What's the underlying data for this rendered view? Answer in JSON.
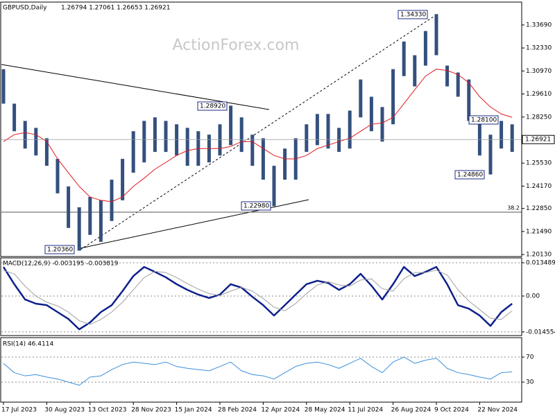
{
  "chart_data": [
    {
      "type": "price-bars",
      "title": "GBPUSD,Daily",
      "subtitle": "1.26794 1.27061 1.26653 1.26921",
      "watermark": "ActionForex.com",
      "categories": [
        "17 Jul 2023",
        null,
        null,
        null,
        "30 Aug 2023",
        null,
        null,
        null,
        "13 Oct 2023",
        null,
        null,
        null,
        "28 Nov 2023",
        null,
        null,
        null,
        "15 Jan 2024",
        null,
        null,
        null,
        "28 Feb 2024",
        null,
        null,
        null,
        "12 Apr 2024",
        null,
        null,
        null,
        "28 May 2024",
        null,
        null,
        null,
        "11 Jul 2024",
        null,
        null,
        null,
        "26 Aug 2024",
        null,
        null,
        null,
        "9 Oct 2024",
        null,
        null,
        null,
        "22 Nov 2024",
        null,
        null,
        null
      ],
      "high": [
        1.3108,
        1.2904,
        1.2802,
        1.2761,
        1.27,
        1.2578,
        1.2415,
        1.2292,
        1.2353,
        1.2333,
        1.2455,
        1.2578,
        1.2741,
        1.2802,
        1.2823,
        1.2802,
        1.2782,
        1.2761,
        1.2741,
        1.2721,
        1.2782,
        1.2892,
        1.2823,
        1.2721,
        1.27,
        1.2537,
        1.2639,
        1.27,
        1.2782,
        1.2843,
        1.2843,
        1.2761,
        1.2863,
        1.3047,
        1.2945,
        1.2884,
        1.3108,
        1.3271,
        1.319,
        1.3333,
        1.3433,
        1.3129,
        1.3088,
        1.3047,
        1.2823,
        1.2721,
        1.2802,
        1.2782
      ],
      "low": [
        1.2904,
        1.2741,
        1.2639,
        1.2598,
        1.2537,
        1.2374,
        1.217,
        1.2036,
        1.2129,
        1.2088,
        1.2211,
        1.2333,
        1.2496,
        1.2557,
        1.2619,
        1.2619,
        1.2598,
        1.2537,
        1.2537,
        1.2557,
        1.2598,
        1.2659,
        1.2619,
        1.2537,
        1.2455,
        1.2298,
        1.2455,
        1.2455,
        1.2619,
        1.2659,
        1.2639,
        1.2619,
        1.2639,
        1.2823,
        1.2741,
        1.268,
        1.2782,
        1.3067,
        1.3006,
        1.3129,
        1.319,
        1.3006,
        1.2945,
        1.2802,
        1.2598,
        1.2486,
        1.2639,
        1.2619
      ],
      "bar_color": "#34507e",
      "ma": {
        "color": "#e0191e",
        "values": [
          1.268,
          1.2721,
          1.2733,
          1.2721,
          1.268,
          1.2578,
          1.2496,
          1.2415,
          1.2353,
          1.2333,
          1.2325,
          1.2353,
          1.2415,
          1.2464,
          1.2517,
          1.2557,
          1.2598,
          1.2627,
          1.2639,
          1.2639,
          1.2639,
          1.2651,
          1.268,
          1.268,
          1.2639,
          1.2598,
          1.2578,
          1.2578,
          1.2598,
          1.2639,
          1.2659,
          1.268,
          1.27,
          1.2741,
          1.2782,
          1.279,
          1.2823,
          1.2904,
          1.2986,
          1.3067,
          1.3108,
          1.31,
          1.3076,
          1.3027,
          1.2945,
          1.2884,
          1.2843,
          1.2823
        ]
      },
      "last_price": 1.26921,
      "level_label": "38.2",
      "annotations": [
        "1.34330",
        "1.28920",
        "1.22980",
        "1.20360",
        "1.28100",
        "1.24860"
      ],
      "ylim": [
        1.2001,
        1.3504
      ],
      "yticks": [
        {
          "value": 1.3369,
          "label": "1.33690"
        },
        {
          "value": 1.3233,
          "label": "1.32330"
        },
        {
          "value": 1.3097,
          "label": "1.30970"
        },
        {
          "value": 1.2961,
          "label": "1.29610"
        },
        {
          "value": 1.2825,
          "label": "1.28250"
        },
        {
          "value": 1.2553,
          "label": "1.25530"
        },
        {
          "value": 1.2417,
          "label": "1.24170"
        },
        {
          "value": 1.2285,
          "label": "1.22850"
        },
        {
          "value": 1.2149,
          "label": "1.21490"
        },
        {
          "value": 1.2013,
          "label": "1.20130"
        }
      ]
    },
    {
      "type": "line",
      "title": "MACD(12,26,9) -0.003195 -0.003819",
      "series": [
        {
          "color": "#0d1f8c",
          "width": 2.5,
          "values": [
            0.0118,
            0.0048,
            -0.0014,
            -0.0031,
            -0.0037,
            -0.0065,
            -0.0093,
            -0.0135,
            -0.0107,
            -0.0065,
            -0.0037,
            0.002,
            0.0081,
            0.0118,
            0.0098,
            0.0076,
            0.0048,
            0.0025,
            0.0006,
            -0.0008,
            0.0006,
            0.0048,
            0.0034,
            -0.0003,
            -0.0037,
            -0.0079,
            -0.0037,
            0.0006,
            0.0048,
            0.0062,
            0.0053,
            0.0025,
            0.0048,
            0.009,
            0.0042,
            -0.0014,
            0.0048,
            0.0118,
            0.0081,
            0.0098,
            0.0118,
            0.0048,
            -0.0037,
            -0.0051,
            -0.0079,
            -0.0121,
            -0.0065,
            -0.0031
          ]
        },
        {
          "color": "#a0a0a0",
          "width": 1,
          "values": [
            0.0104,
            0.009,
            0.004,
            0.0,
            -0.0025,
            -0.004,
            -0.0065,
            -0.01,
            -0.0115,
            -0.0095,
            -0.0065,
            -0.0025,
            0.0025,
            0.0075,
            0.01,
            0.0095,
            0.0075,
            0.005,
            0.0028,
            0.001,
            0.0002,
            0.002,
            0.0035,
            0.002,
            -0.001,
            -0.0045,
            -0.006,
            -0.003,
            0.001,
            0.0045,
            0.0058,
            0.0045,
            0.004,
            0.0065,
            0.007,
            0.003,
            0.002,
            0.007,
            0.0095,
            0.0095,
            0.0105,
            0.0085,
            0.0025,
            -0.002,
            -0.0055,
            -0.009,
            -0.0095,
            -0.006
          ]
        }
      ],
      "ylim": [
        -0.01602,
        0.01545
      ],
      "yticks": [
        0.013489,
        {
          "value": 0,
          "label": "0.00"
        },
        -0.014554
      ]
    },
    {
      "type": "line",
      "title": "RSI(14) 46.4114",
      "series": [
        {
          "color": "#3a8fdb",
          "width": 1,
          "values": [
            60,
            45,
            40,
            42,
            38,
            35,
            30,
            25,
            38,
            40,
            50,
            58,
            62,
            60,
            58,
            62,
            55,
            52,
            50,
            48,
            55,
            62,
            48,
            42,
            40,
            35,
            45,
            55,
            60,
            62,
            58,
            52,
            60,
            68,
            55,
            45,
            62,
            70,
            60,
            65,
            68,
            52,
            45,
            42,
            38,
            35,
            45,
            46.4
          ]
        }
      ],
      "ylim": [
        -2,
        101
      ],
      "yticks": [
        70,
        30
      ]
    }
  ]
}
